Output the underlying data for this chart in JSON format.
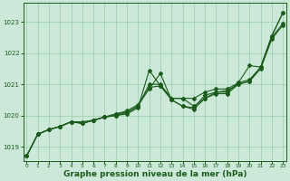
{
  "bg_color": "#cce8d8",
  "grid_color": "#99ccaa",
  "line_color": "#1a5c1a",
  "marker_color": "#1a5c1a",
  "xlabel": "Graphe pression niveau de la mer (hPa)",
  "xlabel_fontsize": 6.5,
  "yticks": [
    1019,
    1020,
    1021,
    1022,
    1023
  ],
  "xticks": [
    0,
    1,
    2,
    3,
    4,
    5,
    6,
    7,
    8,
    9,
    10,
    11,
    12,
    13,
    14,
    15,
    16,
    17,
    18,
    19,
    20,
    21,
    22,
    23
  ],
  "xlim": [
    -0.3,
    23.3
  ],
  "ylim": [
    1018.55,
    1023.6
  ],
  "lines": [
    [
      1018.7,
      1019.4,
      1019.55,
      1019.65,
      1019.8,
      1019.75,
      1019.85,
      1019.95,
      1020.0,
      1020.05,
      1020.25,
      1021.45,
      1020.95,
      1020.55,
      1020.55,
      1020.55,
      1020.75,
      1020.85,
      1020.85,
      1021.05,
      1021.6,
      1021.55,
      1022.55,
      1023.3
    ],
    [
      1018.7,
      1019.4,
      1019.55,
      1019.65,
      1019.8,
      1019.75,
      1019.85,
      1019.95,
      1020.05,
      1020.1,
      1020.3,
      1020.9,
      1020.95,
      1020.5,
      1020.3,
      1020.25,
      1020.65,
      1020.75,
      1020.8,
      1021.0,
      1021.1,
      1021.55,
      1022.5,
      1022.95
    ],
    [
      1018.7,
      1019.4,
      1019.55,
      1019.65,
      1019.8,
      1019.8,
      1019.85,
      1019.95,
      1020.05,
      1020.15,
      1020.35,
      1020.85,
      1021.35,
      1020.5,
      1020.3,
      1020.2,
      1020.55,
      1020.7,
      1020.7,
      1021.0,
      1021.1,
      1021.5,
      1022.45,
      1022.9
    ],
    [
      1018.7,
      1019.4,
      1019.55,
      1019.65,
      1019.8,
      1019.75,
      1019.85,
      1019.95,
      1020.0,
      1020.1,
      1020.3,
      1021.0,
      1021.0,
      1020.55,
      1020.55,
      1020.3,
      1020.55,
      1020.75,
      1020.75,
      1021.05,
      1021.15,
      1021.55,
      1022.55,
      1023.3
    ]
  ]
}
